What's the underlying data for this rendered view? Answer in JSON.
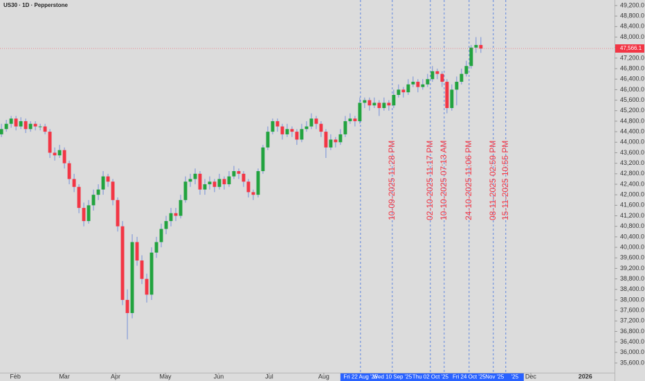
{
  "chart_data": {
    "type": "candlestick",
    "title": "US30 · 1D · Pepperstone",
    "colors": {
      "up": "#22a33f",
      "down": "#f23645",
      "marker": "#3d6fe0",
      "marker_text": "#f23645"
    },
    "x": [
      0,
      1,
      2,
      3,
      4,
      5,
      6,
      7,
      8,
      9,
      10,
      11,
      12,
      13,
      14,
      15,
      16,
      17,
      18,
      19,
      20,
      21,
      22,
      23,
      24,
      25,
      26,
      27,
      28,
      29,
      30,
      31,
      32,
      33,
      34,
      35,
      36,
      37,
      38,
      39,
      40,
      41,
      42,
      43,
      44,
      45,
      46,
      47,
      48,
      49,
      50,
      51,
      52,
      53,
      54,
      55,
      56,
      57,
      58,
      59,
      60,
      61,
      62,
      63,
      64,
      65,
      66,
      67,
      68,
      69,
      70,
      71,
      72,
      73,
      74,
      75,
      76,
      77,
      78,
      79,
      80,
      81,
      82,
      83,
      84,
      85,
      86,
      87,
      88,
      89,
      90,
      91,
      92,
      93,
      94,
      95,
      96,
      97,
      98,
      99
    ],
    "ohlc": [
      [
        44300,
        44700,
        44200,
        44500
      ],
      [
        44500,
        44850,
        44400,
        44700
      ],
      [
        44700,
        45000,
        44550,
        44900
      ],
      [
        44900,
        45000,
        44450,
        44600
      ],
      [
        44600,
        44950,
        44500,
        44800
      ],
      [
        44800,
        44900,
        44350,
        44500
      ],
      [
        44500,
        44800,
        44400,
        44700
      ],
      [
        44700,
        44800,
        44450,
        44600
      ],
      [
        44600,
        44700,
        44450,
        44600
      ],
      [
        44600,
        44700,
        44300,
        44400
      ],
      [
        44400,
        44500,
        43400,
        43600
      ],
      [
        43600,
        43800,
        43300,
        43500
      ],
      [
        43500,
        43900,
        43400,
        43700
      ],
      [
        43700,
        43800,
        43000,
        43200
      ],
      [
        43200,
        43300,
        42400,
        42600
      ],
      [
        42600,
        42800,
        42100,
        42300
      ],
      [
        42300,
        42400,
        41300,
        41500
      ],
      [
        41500,
        41700,
        40800,
        41000
      ],
      [
        41000,
        41800,
        40900,
        41600
      ],
      [
        41600,
        42200,
        41400,
        42000
      ],
      [
        42000,
        42400,
        41800,
        42200
      ],
      [
        42200,
        42900,
        42000,
        42700
      ],
      [
        42700,
        42800,
        42300,
        42500
      ],
      [
        42500,
        42600,
        41600,
        41800
      ],
      [
        41800,
        41900,
        40600,
        40800
      ],
      [
        40800,
        41000,
        37800,
        38000
      ],
      [
        38000,
        38400,
        36500,
        37500
      ],
      [
        37500,
        40500,
        37300,
        40200
      ],
      [
        40200,
        40400,
        39300,
        39500
      ],
      [
        39500,
        39700,
        38600,
        38800
      ],
      [
        38800,
        39000,
        37900,
        38200
      ],
      [
        38200,
        40000,
        38000,
        39800
      ],
      [
        39800,
        40400,
        39600,
        40200
      ],
      [
        40200,
        40900,
        40000,
        40700
      ],
      [
        40700,
        41200,
        40500,
        41000
      ],
      [
        41000,
        41500,
        40800,
        41300
      ],
      [
        41300,
        41500,
        41000,
        41200
      ],
      [
        41200,
        42000,
        41100,
        41800
      ],
      [
        41800,
        42700,
        41700,
        42500
      ],
      [
        42500,
        42800,
        42300,
        42600
      ],
      [
        42600,
        43000,
        42400,
        42800
      ],
      [
        42800,
        42900,
        42000,
        42200
      ],
      [
        42200,
        42600,
        42000,
        42400
      ],
      [
        42400,
        42700,
        42200,
        42500
      ],
      [
        42500,
        42600,
        42100,
        42300
      ],
      [
        42300,
        42800,
        42200,
        42600
      ],
      [
        42600,
        42700,
        42200,
        42400
      ],
      [
        42400,
        42900,
        42300,
        42700
      ],
      [
        42700,
        43100,
        42600,
        42900
      ],
      [
        42900,
        43000,
        42600,
        42800
      ],
      [
        42800,
        42900,
        42300,
        42500
      ],
      [
        42500,
        42600,
        41900,
        42100
      ],
      [
        42100,
        42200,
        41800,
        42000
      ],
      [
        42000,
        43000,
        41900,
        42900
      ],
      [
        42900,
        43900,
        42800,
        43800
      ],
      [
        43800,
        44600,
        43700,
        44400
      ],
      [
        44400,
        44900,
        44300,
        44800
      ],
      [
        44800,
        44900,
        44400,
        44600
      ],
      [
        44600,
        44700,
        44100,
        44300
      ],
      [
        44300,
        44700,
        44200,
        44500
      ],
      [
        44500,
        44600,
        44200,
        44400
      ],
      [
        44400,
        44500,
        43900,
        44100
      ],
      [
        44100,
        44700,
        44000,
        44500
      ],
      [
        44500,
        44800,
        44400,
        44600
      ],
      [
        44600,
        45100,
        44500,
        44900
      ],
      [
        44900,
        45000,
        44500,
        44700
      ],
      [
        44700,
        44800,
        44200,
        44400
      ],
      [
        44400,
        44500,
        43400,
        43800
      ],
      [
        43800,
        44300,
        43700,
        44100
      ],
      [
        44100,
        44200,
        43800,
        44000
      ],
      [
        44000,
        44500,
        43900,
        44300
      ],
      [
        44300,
        45000,
        44200,
        44800
      ],
      [
        44800,
        45100,
        44700,
        44900
      ],
      [
        44900,
        45000,
        44600,
        44800
      ],
      [
        44800,
        45700,
        44700,
        45500
      ],
      [
        45500,
        45700,
        45300,
        45600
      ],
      [
        45600,
        45700,
        45200,
        45400
      ],
      [
        45400,
        45700,
        45300,
        45500
      ],
      [
        45500,
        45600,
        45000,
        45300
      ],
      [
        45300,
        45700,
        45200,
        45500
      ],
      [
        45500,
        45600,
        45200,
        45400
      ],
      [
        45400,
        46000,
        45300,
        45800
      ],
      [
        45800,
        46200,
        45700,
        46000
      ],
      [
        46000,
        46100,
        45700,
        45900
      ],
      [
        45900,
        46400,
        45800,
        46200
      ],
      [
        46200,
        46500,
        46100,
        46300
      ],
      [
        46300,
        46400,
        45900,
        46100
      ],
      [
        46100,
        46400,
        46000,
        46200
      ],
      [
        46200,
        46600,
        46100,
        46400
      ],
      [
        46400,
        46900,
        46300,
        46700
      ],
      [
        46700,
        46800,
        46400,
        46600
      ],
      [
        46600,
        46700,
        46100,
        46300
      ],
      [
        46300,
        46400,
        45100,
        45300
      ],
      [
        45300,
        46200,
        45200,
        46000
      ],
      [
        46000,
        46500,
        45400,
        46300
      ],
      [
        46300,
        46800,
        46200,
        46600
      ],
      [
        46600,
        47100,
        46500,
        46900
      ],
      [
        46900,
        47700,
        46800,
        47600
      ],
      [
        47600,
        48000,
        47400,
        47700
      ],
      [
        47700,
        48000,
        47400,
        47566.1
      ]
    ],
    "last_price": {
      "value": 47566.1,
      "label": "47,566.1"
    },
    "xlim": [
      -0.3,
      126.6
    ],
    "xticks": [
      {
        "value": 2.86,
        "label": "Feb"
      },
      {
        "value": 13,
        "label": "Mar"
      },
      {
        "value": 23.57,
        "label": "Apr"
      },
      {
        "value": 33.86,
        "label": "May"
      },
      {
        "value": 44.86,
        "label": "Jun"
      },
      {
        "value": 55.29,
        "label": "Jul"
      },
      {
        "value": 66.57,
        "label": "Aug"
      },
      {
        "value": 109.3,
        "label": "Dec"
      },
      {
        "value": 120.57,
        "label": "2026"
      }
    ],
    "ylim": [
      35231,
      49411
    ],
    "yticks": [
      {
        "value": 35600,
        "label": "35,600.0"
      },
      {
        "value": 36000,
        "label": "36,000.0"
      },
      {
        "value": 36400,
        "label": "36,400.0"
      },
      {
        "value": 36800,
        "label": "36,800.0"
      },
      {
        "value": 37200,
        "label": "37,200.0"
      },
      {
        "value": 37600,
        "label": "37,600.0"
      },
      {
        "value": 38000,
        "label": "38,000.0"
      },
      {
        "value": 38400,
        "label": "38,400.0"
      },
      {
        "value": 38800,
        "label": "38,800.0"
      },
      {
        "value": 39200,
        "label": "39,200.0"
      },
      {
        "value": 39600,
        "label": "39,600.0"
      },
      {
        "value": 40000,
        "label": "40,000.0"
      },
      {
        "value": 40400,
        "label": "40,400.0"
      },
      {
        "value": 40800,
        "label": "40,800.0"
      },
      {
        "value": 41200,
        "label": "41,200.0"
      },
      {
        "value": 41600,
        "label": "41,600.0"
      },
      {
        "value": 42000,
        "label": "42,000.0"
      },
      {
        "value": 42400,
        "label": "42,400.0"
      },
      {
        "value": 42800,
        "label": "42,800.0"
      },
      {
        "value": 43200,
        "label": "43,200.0"
      },
      {
        "value": 43600,
        "label": "43,600.0"
      },
      {
        "value": 44000,
        "label": "44,000.0"
      },
      {
        "value": 44400,
        "label": "44,400.0"
      },
      {
        "value": 44800,
        "label": "44,800.0"
      },
      {
        "value": 45200,
        "label": "45,200.0"
      },
      {
        "value": 45600,
        "label": "45,600.0"
      },
      {
        "value": 46000,
        "label": "46,000.0"
      },
      {
        "value": 46400,
        "label": "46,400.0"
      },
      {
        "value": 46800,
        "label": "46,800.0"
      },
      {
        "value": 47200,
        "label": "47,200.0"
      },
      {
        "value": 47600,
        "label": "47,600.0"
      },
      {
        "value": 48000,
        "label": "48,000.0"
      },
      {
        "value": 48400,
        "label": "48,400.0"
      },
      {
        "value": 48800,
        "label": "48,800.0"
      },
      {
        "value": 49200,
        "label": "49,200.0"
      }
    ],
    "markers": [
      {
        "x": 74.14
      },
      {
        "x": 80.71,
        "label": "10-09-2025 11:28 PM"
      },
      {
        "x": 88.57,
        "label": "02-10-2025 11:17 PM"
      },
      {
        "x": 91.43,
        "label": "10-10-2025 07:13 AM"
      },
      {
        "x": 96.57,
        "label": "24-10-2025 11:06 PM"
      },
      {
        "x": 101.57,
        "label": "08-11-2025 02:59 PM"
      },
      {
        "x": 104.14,
        "label": "15-11-2025 10:55 PM"
      }
    ],
    "date_labels": [
      {
        "x": 74.14,
        "label": "Fri 22 Aug '25"
      },
      {
        "x": 80.71,
        "label": "Wed 10 Sep '25"
      },
      {
        "x": 88.57,
        "label": "Thu 02 Oct '25"
      },
      {
        "x": 96.57,
        "label": "Fri 24 Oct '25"
      },
      {
        "x": 101.57,
        "label": "' Nov '25"
      },
      {
        "x": 106,
        "label": "'25"
      }
    ]
  }
}
